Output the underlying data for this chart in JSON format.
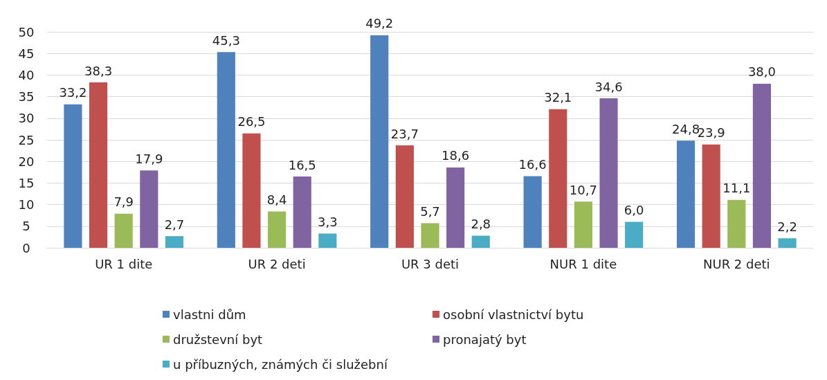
{
  "chart_data": {
    "type": "bar",
    "categories": [
      "UR 1 dite",
      "UR 2 deti",
      "UR 3 deti",
      "NUR 1 dite",
      "NUR 2 deti"
    ],
    "series": [
      {
        "name": "vlastni dům",
        "color": "#4f81bd",
        "values": [
          33.2,
          45.3,
          49.2,
          16.6,
          24.8
        ],
        "value_labels": [
          "33,2",
          "45,3",
          "49,2",
          "16,6",
          "24,8"
        ]
      },
      {
        "name": "osobní vlastnictví bytu",
        "color": "#c0504d",
        "values": [
          38.3,
          26.5,
          23.7,
          32.1,
          23.9
        ],
        "value_labels": [
          "38,3",
          "26,5",
          "23,7",
          "32,1",
          "23,9"
        ]
      },
      {
        "name": "družstevní byt",
        "color": "#9bbb59",
        "values": [
          7.9,
          8.4,
          5.7,
          10.7,
          11.1
        ],
        "value_labels": [
          "7,9",
          "8,4",
          "5,7",
          "10,7",
          "11,1"
        ]
      },
      {
        "name": "pronajatý byt",
        "color": "#8064a2",
        "values": [
          17.9,
          16.5,
          18.6,
          34.6,
          38.0
        ],
        "value_labels": [
          "17,9",
          "16,5",
          "18,6",
          "34,6",
          "38,0"
        ]
      },
      {
        "name": "u příbuzných, známých či služební",
        "color": "#4bacc6",
        "values": [
          2.7,
          3.3,
          2.8,
          6.0,
          2.2
        ],
        "value_labels": [
          "2,7",
          "3,3",
          "2,8",
          "6,0",
          "2,2"
        ]
      }
    ],
    "ylim": [
      0,
      50
    ],
    "yticks": [
      0,
      5,
      10,
      15,
      20,
      25,
      30,
      35,
      40,
      45,
      50
    ],
    "grid": "y",
    "legend": "bottom"
  }
}
